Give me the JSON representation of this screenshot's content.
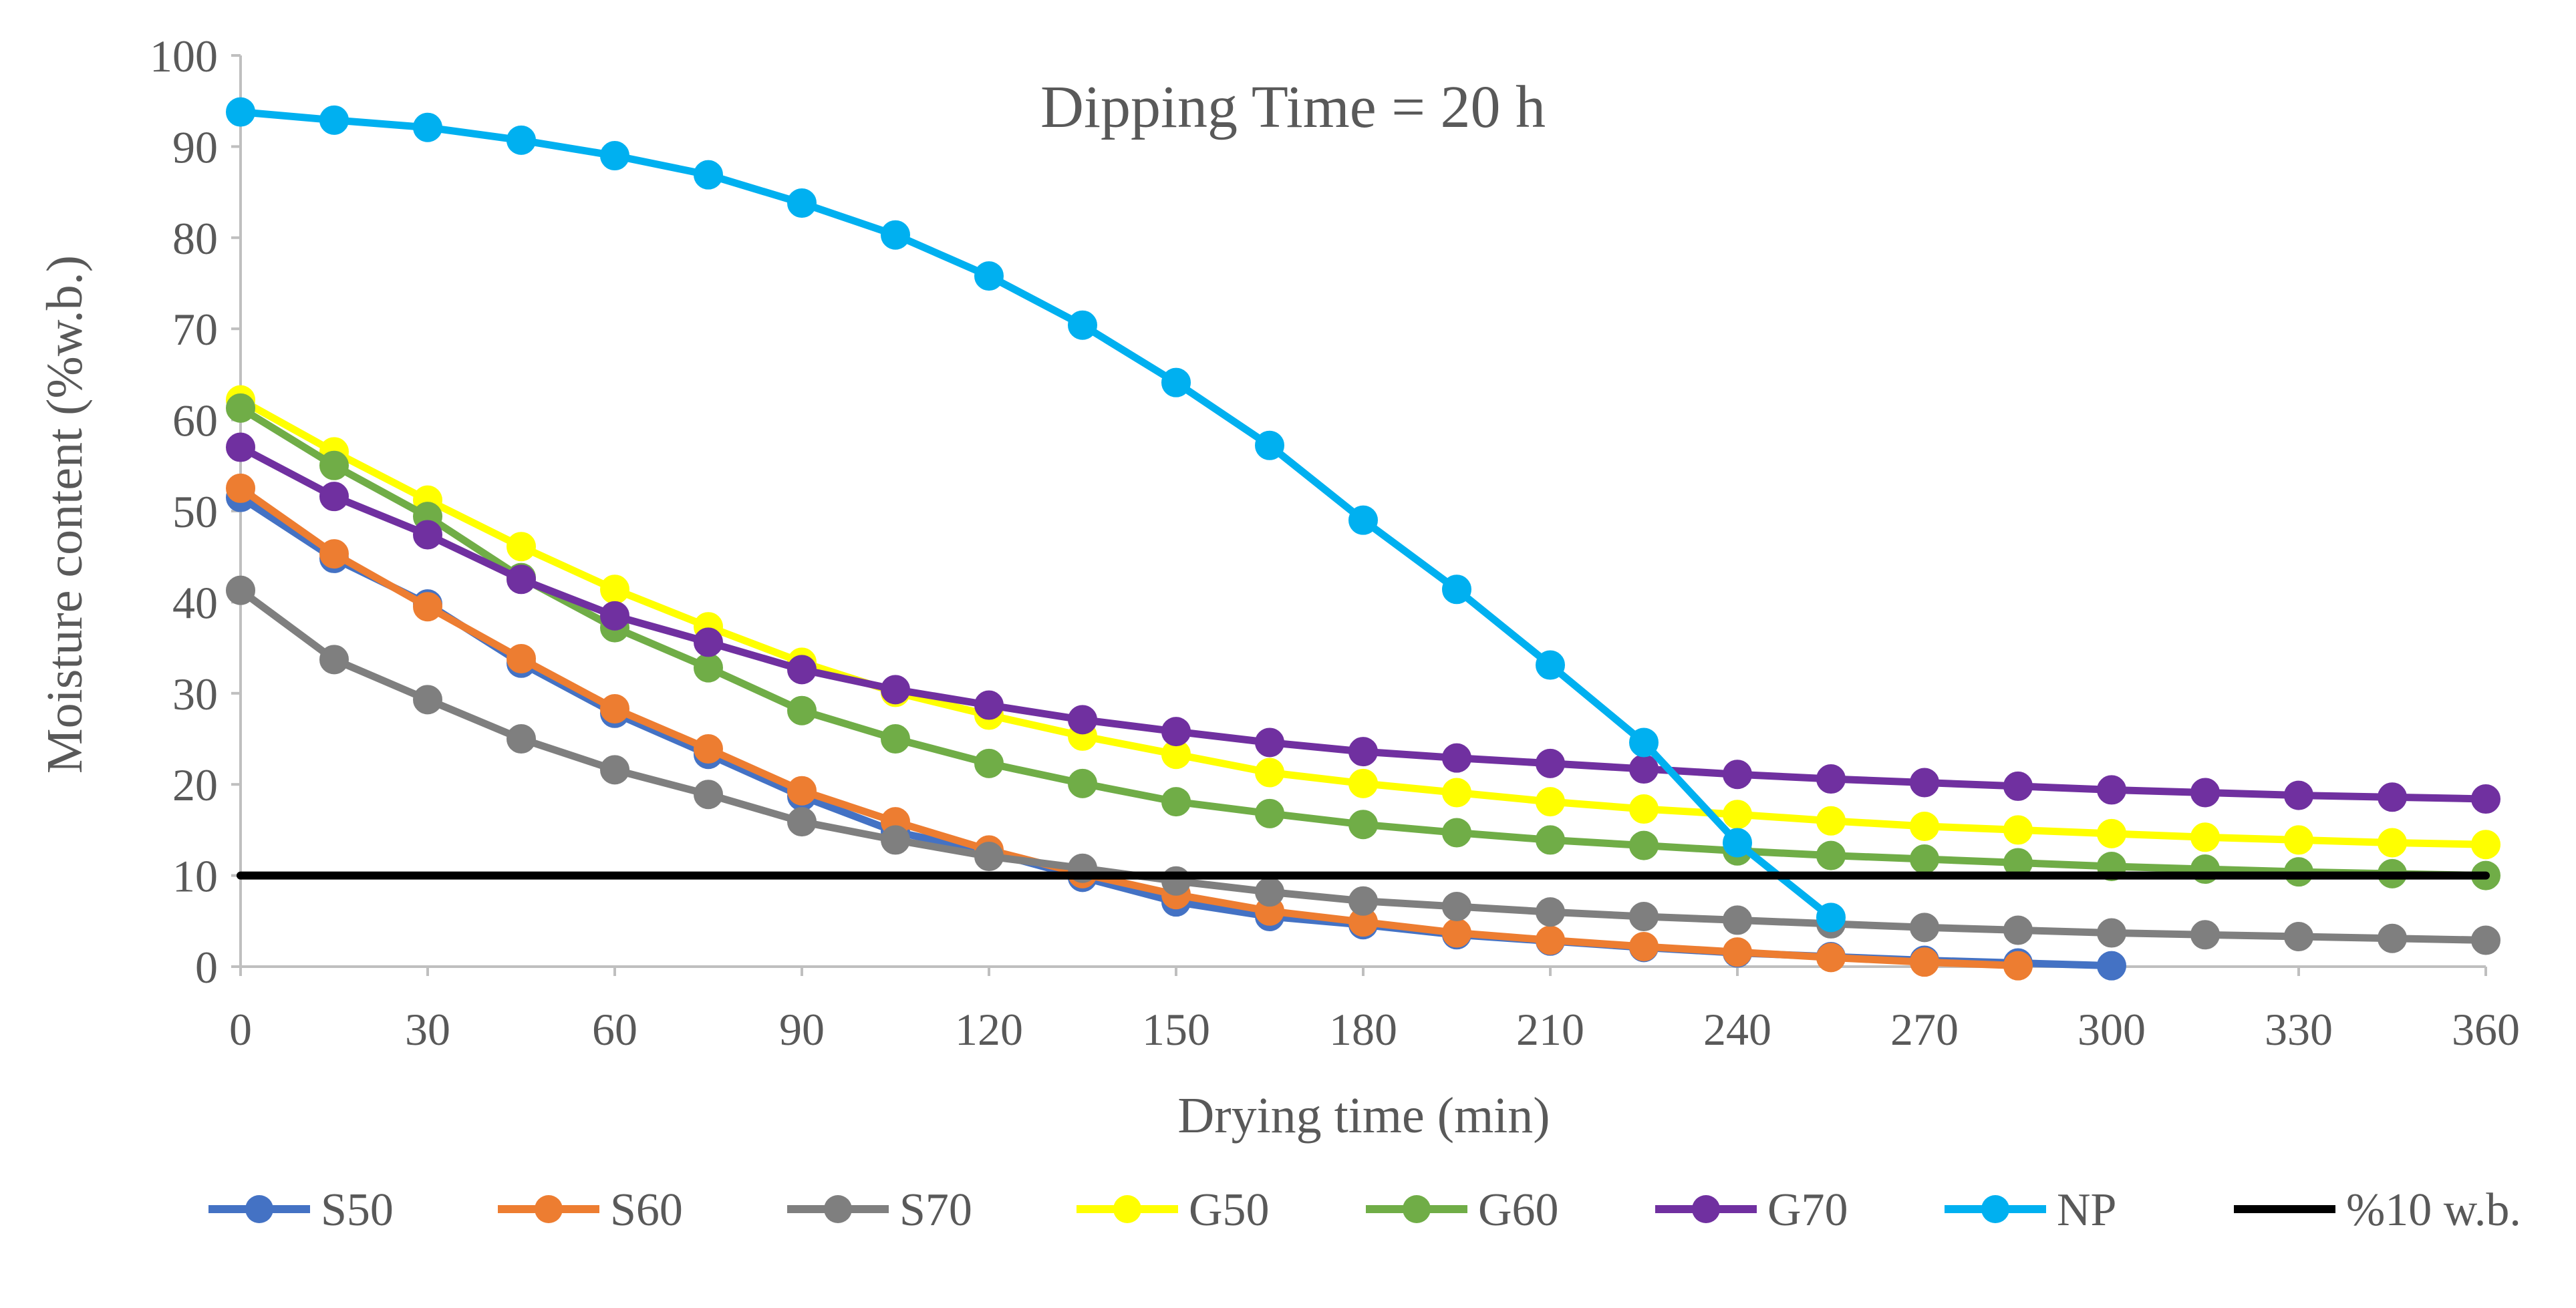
{
  "chart_data": {
    "type": "line",
    "title": "Dipping Time = 20 h",
    "xlabel": "Drying time (min)",
    "ylabel": "Moisture content (%w.b.)",
    "xlim": [
      0,
      360
    ],
    "ylim": [
      0,
      100
    ],
    "x_ticks": [
      "0",
      "30",
      "60",
      "90",
      "120",
      "150",
      "180",
      "210",
      "240",
      "270",
      "300",
      "330",
      "360"
    ],
    "y_ticks": [
      "0",
      "10",
      "20",
      "30",
      "40",
      "50",
      "60",
      "70",
      "80",
      "90",
      "100"
    ],
    "grid": false,
    "legend_position": "bottom",
    "series": [
      {
        "name": "S50",
        "color": "#4472C4",
        "x": [
          0,
          15,
          30,
          45,
          60,
          75,
          90,
          105,
          120,
          135,
          150,
          165,
          180,
          195,
          210,
          225,
          240,
          255,
          270,
          285,
          300
        ],
        "y": [
          51.5,
          44.8,
          39.8,
          33.3,
          27.8,
          23.3,
          18.7,
          14.8,
          12.6,
          9.8,
          7.1,
          5.5,
          4.6,
          3.5,
          2.8,
          2.1,
          1.5,
          1.1,
          0.7,
          0.4,
          0.1
        ]
      },
      {
        "name": "S60",
        "color": "#ED7D31",
        "x": [
          0,
          15,
          30,
          45,
          60,
          75,
          90,
          105,
          120,
          135,
          150,
          165,
          180,
          195,
          210,
          225,
          240,
          255,
          270,
          285
        ],
        "y": [
          52.5,
          45.3,
          39.5,
          33.8,
          28.3,
          23.9,
          19.3,
          15.9,
          12.8,
          10.2,
          7.9,
          6.1,
          4.9,
          3.7,
          2.9,
          2.2,
          1.6,
          1.0,
          0.5,
          0.1
        ]
      },
      {
        "name": "S70",
        "color": "#7F7F7F",
        "x": [
          0,
          15,
          30,
          45,
          60,
          75,
          90,
          105,
          120,
          135,
          150,
          165,
          180,
          195,
          210,
          225,
          240,
          255,
          270,
          285,
          300,
          315,
          330,
          345,
          360
        ],
        "y": [
          41.3,
          33.7,
          29.3,
          25.0,
          21.6,
          18.9,
          15.9,
          13.9,
          12.1,
          10.8,
          9.4,
          8.2,
          7.2,
          6.6,
          6.0,
          5.5,
          5.1,
          4.7,
          4.3,
          4.0,
          3.7,
          3.5,
          3.3,
          3.1,
          2.9
        ]
      },
      {
        "name": "G50",
        "color": "#FFFF00",
        "x": [
          0,
          15,
          30,
          45,
          60,
          75,
          90,
          105,
          120,
          135,
          150,
          165,
          180,
          195,
          210,
          225,
          240,
          255,
          270,
          285,
          300,
          315,
          330,
          345,
          360
        ],
        "y": [
          62.2,
          56.5,
          51.2,
          46.1,
          41.4,
          37.3,
          33.4,
          30.1,
          27.6,
          25.3,
          23.3,
          21.3,
          20.1,
          19.1,
          18.1,
          17.3,
          16.7,
          16.0,
          15.4,
          15.0,
          14.6,
          14.2,
          13.9,
          13.6,
          13.4
        ]
      },
      {
        "name": "G60",
        "color": "#70AD47",
        "x": [
          0,
          15,
          30,
          45,
          60,
          75,
          90,
          105,
          120,
          135,
          150,
          165,
          180,
          195,
          210,
          225,
          240,
          255,
          270,
          285,
          300,
          315,
          330,
          345,
          360
        ],
        "y": [
          61.3,
          55.0,
          49.4,
          42.7,
          37.2,
          32.8,
          28.1,
          25.0,
          22.3,
          20.1,
          18.1,
          16.8,
          15.6,
          14.7,
          13.9,
          13.3,
          12.7,
          12.2,
          11.8,
          11.4,
          11.0,
          10.7,
          10.4,
          10.2,
          10.0
        ]
      },
      {
        "name": "G70",
        "color": "#7030A0",
        "x": [
          0,
          15,
          30,
          45,
          60,
          75,
          90,
          105,
          120,
          135,
          150,
          165,
          180,
          195,
          210,
          225,
          240,
          255,
          270,
          285,
          300,
          315,
          330,
          345,
          360
        ],
        "y": [
          57.0,
          51.6,
          47.4,
          42.5,
          38.5,
          35.6,
          32.6,
          30.4,
          28.7,
          27.1,
          25.8,
          24.6,
          23.6,
          22.9,
          22.3,
          21.7,
          21.1,
          20.6,
          20.2,
          19.8,
          19.4,
          19.1,
          18.8,
          18.6,
          18.4
        ]
      },
      {
        "name": "NP",
        "color": "#00B0F0",
        "x": [
          0,
          15,
          30,
          45,
          60,
          75,
          90,
          105,
          120,
          135,
          150,
          165,
          180,
          195,
          210,
          225,
          240,
          255
        ],
        "y": [
          93.8,
          92.9,
          92.1,
          90.7,
          89.0,
          86.9,
          83.8,
          80.3,
          75.8,
          70.4,
          64.1,
          57.2,
          49.0,
          41.4,
          33.1,
          24.6,
          13.6,
          5.4
        ]
      },
      {
        "name": "%10 w.b.",
        "color": "#000000",
        "markers": false,
        "x": [
          0,
          360
        ],
        "y": [
          10,
          10
        ]
      }
    ]
  }
}
